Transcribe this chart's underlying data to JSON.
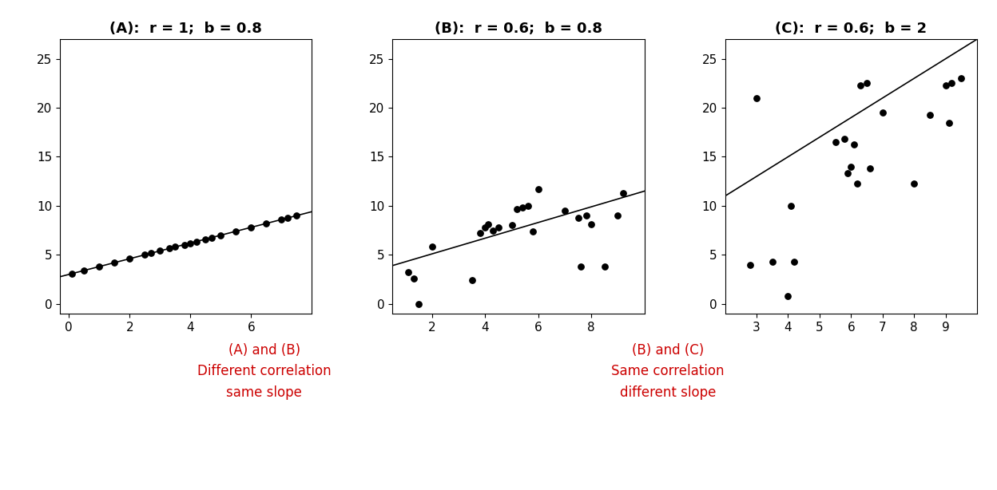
{
  "panel_A": {
    "title": "(A):  r = 1;  b = 0.8",
    "slope": 0.8,
    "intercept": 3.0,
    "x_data": [
      0.1,
      0.5,
      1.0,
      1.5,
      2.0,
      2.5,
      2.7,
      3.0,
      3.3,
      3.5,
      3.8,
      4.0,
      4.2,
      4.5,
      4.7,
      5.0,
      5.5,
      6.0,
      6.5,
      7.0,
      7.2,
      7.5
    ],
    "xlim": [
      -0.3,
      8.0
    ],
    "ylim": [
      -1,
      27
    ],
    "xticks": [
      0,
      2,
      4,
      6
    ],
    "yticks": [
      0,
      5,
      10,
      15,
      20,
      25
    ]
  },
  "panel_B": {
    "title": "(B):  r = 0.6;  b = 0.8",
    "slope": 0.8,
    "intercept": 3.5,
    "x_data": [
      1.1,
      1.3,
      1.5,
      2.0,
      3.5,
      3.8,
      4.0,
      4.1,
      4.3,
      4.5,
      5.0,
      5.2,
      5.4,
      5.6,
      5.8,
      6.0,
      7.0,
      7.5,
      7.6,
      7.8,
      8.0,
      8.5,
      9.0,
      9.2
    ],
    "y_data": [
      3.2,
      2.6,
      0.0,
      5.8,
      2.4,
      7.2,
      7.8,
      8.1,
      7.5,
      7.8,
      8.0,
      9.7,
      9.8,
      10.0,
      7.4,
      11.7,
      9.5,
      8.8,
      3.8,
      9.0,
      8.1,
      3.8,
      9.0,
      11.3
    ],
    "xlim": [
      0.5,
      10.0
    ],
    "ylim": [
      -1,
      27
    ],
    "xticks": [
      2,
      4,
      6,
      8
    ],
    "yticks": [
      0,
      5,
      10,
      15,
      20,
      25
    ]
  },
  "panel_C": {
    "title": "(C):  r = 0.6;  b = 2",
    "slope": 2.0,
    "intercept": 7.0,
    "x_data": [
      2.8,
      3.0,
      3.5,
      4.0,
      4.1,
      4.2,
      5.5,
      5.8,
      5.9,
      6.0,
      6.1,
      6.2,
      6.3,
      6.5,
      6.6,
      7.0,
      8.0,
      8.5,
      9.0,
      9.1,
      9.2,
      9.5
    ],
    "y_data": [
      4.0,
      21.0,
      4.3,
      0.8,
      10.0,
      4.3,
      16.5,
      16.8,
      13.3,
      14.0,
      16.3,
      12.3,
      22.3,
      22.5,
      13.8,
      19.5,
      12.3,
      19.3,
      22.3,
      18.5,
      22.5,
      23.0
    ],
    "xlim": [
      2.0,
      10.0
    ],
    "ylim": [
      -1,
      27
    ],
    "xticks": [
      3,
      4,
      5,
      6,
      7,
      8,
      9
    ],
    "yticks": [
      0,
      5,
      10,
      15,
      20,
      25
    ]
  },
  "annotation_left": "(A) and (B)\nDifferent correlation\nsame slope",
  "annotation_right": "(B) and (C)\nSame correlation\ndifferent slope",
  "annotation_color": "#cc0000",
  "dot_color": "black",
  "line_color": "black",
  "bg_color": "white",
  "title_fontsize": 13,
  "annotation_fontsize": 12,
  "tick_fontsize": 11
}
